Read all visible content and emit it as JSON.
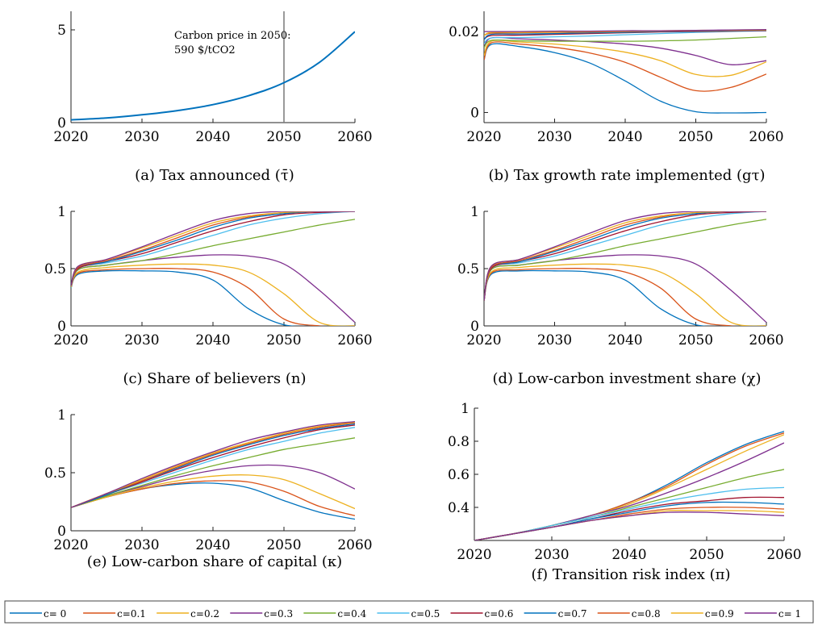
{
  "palette": [
    "#0072BD",
    "#D95319",
    "#EDB120",
    "#7E2F8E",
    "#77AC30",
    "#4DBEEE",
    "#A2142F"
  ],
  "legend": {
    "entries": [
      "c= 0",
      "c=0.1",
      "c=0.2",
      "c=0.3",
      "c=0.4",
      "c=0.5",
      "c=0.6",
      "c=0.7",
      "c=0.8",
      "c=0.9",
      "c= 1"
    ]
  },
  "chart_data": [
    {
      "id": "a",
      "type": "line",
      "caption": "(a) Tax announced (τ̄)",
      "annotation": [
        "Carbon price in 2050:",
        "590 $/tCO2"
      ],
      "xlim": [
        2020,
        2060
      ],
      "xticks": [
        2020,
        2030,
        2040,
        2050,
        2060
      ],
      "ylim": [
        0,
        6
      ],
      "yticks": [
        0,
        5
      ],
      "vline": 2050,
      "series": [
        {
          "x": [
            2020,
            2025,
            2030,
            2035,
            2040,
            2045,
            2050,
            2055,
            2060
          ],
          "y": [
            0.15,
            0.25,
            0.42,
            0.65,
            0.97,
            1.45,
            2.15,
            3.25,
            4.9
          ]
        }
      ]
    },
    {
      "id": "b",
      "type": "line",
      "caption": "(b) Tax growth rate implemented (gτ)",
      "xlim": [
        2020,
        2060
      ],
      "xticks": [
        2020,
        2030,
        2040,
        2050,
        2060
      ],
      "ylim": [
        -0.0025,
        0.025
      ],
      "yticks": [
        0,
        0.02
      ],
      "yticklabels": [
        "0",
        "0.02"
      ],
      "x": [
        2020,
        2021,
        2025,
        2030,
        2035,
        2040,
        2045,
        2050,
        2055,
        2060
      ],
      "series": [
        {
          "name": "c= 0",
          "y": [
            0.013,
            0.0168,
            0.0163,
            0.0148,
            0.0122,
            0.0078,
            0.0028,
            0.0002,
            -0.0001,
            0.0
          ]
        },
        {
          "name": "c=0.1",
          "y": [
            0.013,
            0.0172,
            0.0169,
            0.0161,
            0.0147,
            0.0124,
            0.0087,
            0.0054,
            0.0062,
            0.0095
          ]
        },
        {
          "name": "c=0.2",
          "y": [
            0.014,
            0.0176,
            0.0174,
            0.0169,
            0.0161,
            0.0149,
            0.0128,
            0.0094,
            0.0092,
            0.0125
          ]
        },
        {
          "name": "c=0.3",
          "y": [
            0.016,
            0.0184,
            0.0182,
            0.0179,
            0.0175,
            0.0169,
            0.0159,
            0.0141,
            0.0118,
            0.0128
          ]
        },
        {
          "name": "c=0.4",
          "y": [
            0.016,
            0.0178,
            0.0177,
            0.0176,
            0.0176,
            0.0176,
            0.0177,
            0.0179,
            0.0183,
            0.0187
          ]
        },
        {
          "name": "c=0.5",
          "y": [
            0.017,
            0.0184,
            0.0185,
            0.0187,
            0.0189,
            0.0192,
            0.0195,
            0.0198,
            0.02,
            0.0202
          ]
        },
        {
          "name": "c=0.6",
          "y": [
            0.018,
            0.019,
            0.0191,
            0.0193,
            0.0195,
            0.0197,
            0.0199,
            0.02,
            0.0201,
            0.0202
          ]
        },
        {
          "name": "c=0.7",
          "y": [
            0.018,
            0.0193,
            0.0194,
            0.0195,
            0.0197,
            0.0198,
            0.02,
            0.0201,
            0.0202,
            0.0203
          ]
        },
        {
          "name": "c=0.8",
          "y": [
            0.019,
            0.0196,
            0.0197,
            0.0198,
            0.0199,
            0.02,
            0.0201,
            0.0202,
            0.0203,
            0.0204
          ]
        },
        {
          "name": "c=0.9",
          "y": [
            0.019,
            0.0198,
            0.0198,
            0.0199,
            0.02,
            0.0201,
            0.0202,
            0.0203,
            0.0203,
            0.0204
          ]
        },
        {
          "name": "c= 1",
          "y": [
            0.02,
            0.02,
            0.02,
            0.0201,
            0.0201,
            0.0202,
            0.0202,
            0.0203,
            0.0204,
            0.0205
          ]
        }
      ]
    },
    {
      "id": "c",
      "type": "line",
      "caption": "(c) Share of believers (n)",
      "xlim": [
        2020,
        2060
      ],
      "xticks": [
        2020,
        2030,
        2040,
        2050,
        2060
      ],
      "ylim": [
        0,
        1
      ],
      "yticks": [
        0,
        0.5,
        1
      ],
      "yticklabels": [
        "0",
        "0.5",
        "1"
      ],
      "x": [
        2020,
        2021,
        2025,
        2030,
        2035,
        2040,
        2045,
        2050,
        2055,
        2060
      ],
      "series": [
        {
          "name": "c= 0",
          "y": [
            0.33,
            0.45,
            0.48,
            0.48,
            0.47,
            0.4,
            0.15,
            0.01,
            0.0,
            0.0
          ]
        },
        {
          "name": "c=0.1",
          "y": [
            0.33,
            0.46,
            0.49,
            0.5,
            0.5,
            0.47,
            0.33,
            0.06,
            0.0,
            0.0
          ]
        },
        {
          "name": "c=0.2",
          "y": [
            0.33,
            0.47,
            0.51,
            0.53,
            0.54,
            0.53,
            0.47,
            0.28,
            0.03,
            0.0
          ]
        },
        {
          "name": "c=0.3",
          "y": [
            0.33,
            0.49,
            0.53,
            0.57,
            0.6,
            0.62,
            0.61,
            0.54,
            0.31,
            0.03
          ]
        },
        {
          "name": "c=0.4",
          "y": [
            0.33,
            0.49,
            0.53,
            0.57,
            0.63,
            0.7,
            0.76,
            0.82,
            0.88,
            0.93
          ]
        },
        {
          "name": "c=0.5",
          "y": [
            0.33,
            0.5,
            0.55,
            0.61,
            0.7,
            0.79,
            0.88,
            0.94,
            0.98,
            1.0
          ]
        },
        {
          "name": "c=0.6",
          "y": [
            0.34,
            0.5,
            0.56,
            0.63,
            0.73,
            0.83,
            0.91,
            0.97,
            0.99,
            1.0
          ]
        },
        {
          "name": "c=0.7",
          "y": [
            0.34,
            0.51,
            0.56,
            0.65,
            0.75,
            0.86,
            0.94,
            0.98,
            1.0,
            1.0
          ]
        },
        {
          "name": "c=0.8",
          "y": [
            0.34,
            0.51,
            0.57,
            0.66,
            0.77,
            0.88,
            0.95,
            0.99,
            1.0,
            1.0
          ]
        },
        {
          "name": "c=0.9",
          "y": [
            0.34,
            0.52,
            0.58,
            0.68,
            0.79,
            0.9,
            0.96,
            0.99,
            1.0,
            1.0
          ]
        },
        {
          "name": "c= 1",
          "y": [
            0.35,
            0.52,
            0.58,
            0.69,
            0.81,
            0.92,
            0.98,
            1.0,
            1.0,
            1.0
          ]
        }
      ]
    },
    {
      "id": "d",
      "type": "line",
      "caption": "(d) Low-carbon investment share (χ)",
      "xlim": [
        2020,
        2060
      ],
      "xticks": [
        2020,
        2030,
        2040,
        2050,
        2060
      ],
      "ylim": [
        0,
        1
      ],
      "yticks": [
        0,
        0.5,
        1
      ],
      "yticklabels": [
        "0",
        "0.5",
        "1"
      ],
      "x": [
        2020,
        2021,
        2025,
        2030,
        2035,
        2040,
        2045,
        2050,
        2055,
        2060
      ],
      "series": [
        {
          "name": "c= 0",
          "y": [
            0.22,
            0.45,
            0.48,
            0.48,
            0.47,
            0.4,
            0.15,
            0.01,
            0.0,
            0.0
          ]
        },
        {
          "name": "c=0.1",
          "y": [
            0.22,
            0.46,
            0.49,
            0.5,
            0.5,
            0.47,
            0.33,
            0.06,
            0.0,
            0.0
          ]
        },
        {
          "name": "c=0.2",
          "y": [
            0.22,
            0.47,
            0.51,
            0.53,
            0.54,
            0.53,
            0.47,
            0.28,
            0.03,
            0.0
          ]
        },
        {
          "name": "c=0.3",
          "y": [
            0.22,
            0.49,
            0.53,
            0.57,
            0.6,
            0.62,
            0.61,
            0.54,
            0.31,
            0.03
          ]
        },
        {
          "name": "c=0.4",
          "y": [
            0.22,
            0.49,
            0.53,
            0.57,
            0.63,
            0.7,
            0.76,
            0.82,
            0.88,
            0.93
          ]
        },
        {
          "name": "c=0.5",
          "y": [
            0.22,
            0.5,
            0.55,
            0.61,
            0.7,
            0.79,
            0.88,
            0.94,
            0.98,
            1.0
          ]
        },
        {
          "name": "c=0.6",
          "y": [
            0.22,
            0.5,
            0.56,
            0.63,
            0.73,
            0.83,
            0.91,
            0.97,
            0.99,
            1.0
          ]
        },
        {
          "name": "c=0.7",
          "y": [
            0.22,
            0.51,
            0.56,
            0.65,
            0.75,
            0.86,
            0.94,
            0.98,
            1.0,
            1.0
          ]
        },
        {
          "name": "c=0.8",
          "y": [
            0.22,
            0.51,
            0.57,
            0.66,
            0.77,
            0.88,
            0.95,
            0.99,
            1.0,
            1.0
          ]
        },
        {
          "name": "c=0.9",
          "y": [
            0.22,
            0.52,
            0.58,
            0.68,
            0.79,
            0.9,
            0.96,
            0.99,
            1.0,
            1.0
          ]
        },
        {
          "name": "c= 1",
          "y": [
            0.22,
            0.52,
            0.58,
            0.69,
            0.81,
            0.92,
            0.98,
            1.0,
            1.0,
            1.0
          ]
        }
      ]
    },
    {
      "id": "e",
      "type": "line",
      "caption": "(e) Low-carbon share of capital (κ)",
      "xlim": [
        2020,
        2060
      ],
      "xticks": [
        2020,
        2030,
        2040,
        2050,
        2060
      ],
      "ylim": [
        0,
        1
      ],
      "yticks": [
        0,
        0.5,
        1
      ],
      "yticklabels": [
        "0",
        "0.5",
        "1"
      ],
      "x": [
        2020,
        2025,
        2030,
        2035,
        2040,
        2045,
        2050,
        2055,
        2060
      ],
      "series": [
        {
          "name": "c= 0",
          "y": [
            0.2,
            0.29,
            0.36,
            0.4,
            0.41,
            0.37,
            0.26,
            0.16,
            0.1
          ]
        },
        {
          "name": "c=0.1",
          "y": [
            0.2,
            0.29,
            0.36,
            0.41,
            0.43,
            0.42,
            0.34,
            0.21,
            0.13
          ]
        },
        {
          "name": "c=0.2",
          "y": [
            0.2,
            0.29,
            0.37,
            0.43,
            0.47,
            0.48,
            0.44,
            0.32,
            0.19
          ]
        },
        {
          "name": "c=0.3",
          "y": [
            0.2,
            0.3,
            0.38,
            0.46,
            0.52,
            0.56,
            0.56,
            0.5,
            0.36
          ]
        },
        {
          "name": "c=0.4",
          "y": [
            0.2,
            0.3,
            0.39,
            0.48,
            0.56,
            0.63,
            0.7,
            0.75,
            0.8
          ]
        },
        {
          "name": "c=0.5",
          "y": [
            0.2,
            0.31,
            0.41,
            0.51,
            0.61,
            0.7,
            0.77,
            0.84,
            0.89
          ]
        },
        {
          "name": "c=0.6",
          "y": [
            0.2,
            0.31,
            0.42,
            0.53,
            0.63,
            0.72,
            0.8,
            0.87,
            0.91
          ]
        },
        {
          "name": "c=0.7",
          "y": [
            0.2,
            0.31,
            0.43,
            0.54,
            0.65,
            0.74,
            0.82,
            0.88,
            0.92
          ]
        },
        {
          "name": "c=0.8",
          "y": [
            0.2,
            0.32,
            0.43,
            0.55,
            0.66,
            0.75,
            0.83,
            0.89,
            0.93
          ]
        },
        {
          "name": "c=0.9",
          "y": [
            0.2,
            0.32,
            0.44,
            0.56,
            0.67,
            0.76,
            0.84,
            0.9,
            0.935
          ]
        },
        {
          "name": "c= 1",
          "y": [
            0.2,
            0.32,
            0.45,
            0.57,
            0.68,
            0.78,
            0.85,
            0.91,
            0.94
          ]
        }
      ]
    },
    {
      "id": "f",
      "type": "line",
      "caption": "(f) Transition risk index (π)",
      "xlim": [
        2020,
        2060
      ],
      "xticks": [
        2020,
        2030,
        2040,
        2050,
        2060
      ],
      "ylim": [
        0.2,
        1
      ],
      "yticks": [
        0.4,
        0.6,
        0.8,
        1
      ],
      "yticklabels": [
        "0.4",
        "0.6",
        "0.8",
        "1"
      ],
      "x": [
        2020,
        2025,
        2030,
        2035,
        2040,
        2045,
        2050,
        2055,
        2060
      ],
      "series": [
        {
          "name": "c= 0",
          "y": [
            0.2,
            0.24,
            0.29,
            0.35,
            0.43,
            0.54,
            0.67,
            0.78,
            0.86
          ]
        },
        {
          "name": "c=0.1",
          "y": [
            0.2,
            0.24,
            0.29,
            0.35,
            0.43,
            0.53,
            0.66,
            0.77,
            0.85
          ]
        },
        {
          "name": "c=0.2",
          "y": [
            0.2,
            0.24,
            0.29,
            0.35,
            0.42,
            0.52,
            0.63,
            0.74,
            0.84
          ]
        },
        {
          "name": "c=0.3",
          "y": [
            0.2,
            0.24,
            0.29,
            0.35,
            0.41,
            0.49,
            0.58,
            0.68,
            0.79
          ]
        },
        {
          "name": "c=0.4",
          "y": [
            0.2,
            0.24,
            0.29,
            0.34,
            0.4,
            0.46,
            0.52,
            0.58,
            0.63
          ]
        },
        {
          "name": "c=0.5",
          "y": [
            0.2,
            0.24,
            0.29,
            0.34,
            0.39,
            0.44,
            0.48,
            0.51,
            0.52
          ]
        },
        {
          "name": "c=0.6",
          "y": [
            0.2,
            0.24,
            0.28,
            0.33,
            0.38,
            0.42,
            0.44,
            0.46,
            0.46
          ]
        },
        {
          "name": "c=0.7",
          "y": [
            0.2,
            0.24,
            0.28,
            0.33,
            0.37,
            0.41,
            0.43,
            0.43,
            0.42
          ]
        },
        {
          "name": "c=0.8",
          "y": [
            0.2,
            0.24,
            0.28,
            0.32,
            0.36,
            0.39,
            0.4,
            0.4,
            0.39
          ]
        },
        {
          "name": "c=0.9",
          "y": [
            0.2,
            0.24,
            0.28,
            0.32,
            0.35,
            0.38,
            0.38,
            0.38,
            0.37
          ]
        },
        {
          "name": "c= 1",
          "y": [
            0.2,
            0.24,
            0.28,
            0.32,
            0.35,
            0.37,
            0.37,
            0.36,
            0.35
          ]
        }
      ]
    }
  ]
}
